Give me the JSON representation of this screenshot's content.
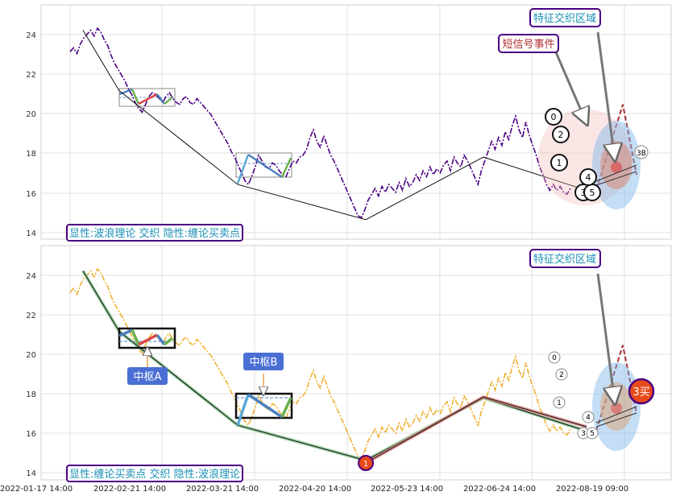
{
  "chart_data": [
    {
      "type": "line",
      "ylim": [
        13.6,
        25.6
      ],
      "yticks": [
        14,
        16,
        18,
        20,
        22,
        24
      ],
      "grid": true,
      "legend_text": "显性:波浪理论 交织 隐性:缠论买卖点",
      "annotations": [
        "特征交织区域",
        "短信号事件"
      ],
      "wave_labels": [
        "0",
        "2",
        "1",
        "3",
        "5",
        "4",
        "3B"
      ],
      "series": [
        {
          "values": [
            23.2,
            23.4,
            23.1,
            23.6,
            23.9,
            24.1,
            24.3,
            24.0,
            24.4,
            24.2,
            23.8,
            23.5,
            23.0,
            22.6,
            22.3,
            22.0,
            21.7,
            21.3,
            21.0,
            20.6,
            20.3,
            20.1,
            20.5,
            20.9,
            21.1,
            21.0,
            20.8,
            20.6,
            20.9,
            21.1,
            20.8,
            20.6,
            20.5,
            20.8,
            20.9,
            20.6,
            20.5,
            20.8,
            20.6,
            20.4,
            20.2,
            20.0,
            19.7,
            19.4,
            19.1,
            18.8,
            18.5,
            18.1,
            17.8,
            17.4,
            17.0,
            16.6,
            16.4,
            16.8,
            17.3,
            17.9,
            17.6,
            17.3,
            17.2,
            17.5,
            17.4,
            17.1,
            16.9,
            16.8,
            17.2,
            17.6,
            17.5,
            17.8,
            17.9,
            18.2,
            18.8,
            19.2,
            18.6,
            18.3,
            18.9,
            18.4,
            17.9,
            17.6,
            17.2,
            16.8,
            16.4,
            16.0,
            15.6,
            15.2,
            14.8,
            14.7,
            15.1,
            15.6,
            15.9,
            16.2,
            15.8,
            16.3,
            16.0,
            16.4,
            16.2,
            16.0,
            16.5,
            16.1,
            16.7,
            16.3,
            16.5,
            16.9,
            16.6,
            17.1,
            16.8,
            17.3,
            16.9,
            17.2,
            17.0,
            17.4,
            17.6,
            17.1,
            17.8,
            17.5,
            17.3,
            17.9,
            17.6,
            17.2,
            16.8,
            16.4,
            17.1,
            17.6,
            18.1,
            18.6,
            18.2,
            18.8,
            18.4,
            19.1,
            18.7,
            19.4,
            19.9,
            19.2,
            18.8,
            19.6,
            18.9,
            18.4,
            17.9,
            17.3,
            16.9,
            16.4,
            16.1,
            16.4,
            16.1,
            16.3,
            16.0,
            15.9,
            16.2
          ]
        },
        {
          "values": [
            24.3,
            21.2,
            16.4,
            14.6,
            17.8,
            16.1
          ]
        },
        {
          "values": [
            16.1,
            20.5,
            16.9
          ]
        }
      ]
    },
    {
      "type": "line",
      "ylim": [
        13.6,
        25.6
      ],
      "yticks": [
        14,
        16,
        18,
        20,
        22,
        24
      ],
      "grid": true,
      "x_tick_labels": [
        "2022-01-17 14:00",
        "2022-02-21 14:00",
        "2022-03-21 14:00",
        "2022-04-20 14:00",
        "2022-05-23 14:00",
        "2022-06-24 14:00",
        "2022-08-19 09:00"
      ],
      "legend_text": "显性:缠论买卖点 交织 隐性:波浪理论",
      "annotations": [
        "特征交织区域",
        "中枢A",
        "中枢B"
      ],
      "wave_labels": [
        "0",
        "2",
        "1",
        "3",
        "5",
        "4"
      ],
      "markers": [
        "1",
        "3买"
      ],
      "series": [
        {
          "values": [
            23.2,
            23.4,
            23.1,
            23.6,
            23.9,
            24.1,
            24.3,
            24.0,
            24.4,
            24.2,
            23.8,
            23.5,
            23.0,
            22.6,
            22.3,
            22.0,
            21.7,
            21.3,
            21.0,
            20.6,
            20.3,
            20.1,
            20.5,
            20.9,
            21.1,
            21.0,
            20.8,
            20.6,
            20.9,
            21.1,
            20.8,
            20.6,
            20.5,
            20.8,
            20.9,
            20.6,
            20.5,
            20.8,
            20.6,
            20.4,
            20.2,
            20.0,
            19.7,
            19.4,
            19.1,
            18.8,
            18.5,
            18.1,
            17.8,
            17.4,
            17.0,
            16.6,
            16.4,
            16.8,
            17.3,
            17.9,
            17.6,
            17.3,
            17.2,
            17.5,
            17.4,
            17.1,
            16.9,
            16.8,
            17.2,
            17.6,
            17.5,
            17.8,
            17.9,
            18.2,
            18.8,
            19.2,
            18.6,
            18.3,
            18.9,
            18.4,
            17.9,
            17.6,
            17.2,
            16.8,
            16.4,
            16.0,
            15.6,
            15.2,
            14.8,
            14.7,
            15.1,
            15.6,
            15.9,
            16.2,
            15.8,
            16.3,
            16.0,
            16.4,
            16.2,
            16.0,
            16.5,
            16.1,
            16.7,
            16.3,
            16.5,
            16.9,
            16.6,
            17.1,
            16.8,
            17.3,
            16.9,
            17.2,
            17.0,
            17.4,
            17.6,
            17.1,
            17.8,
            17.5,
            17.3,
            17.9,
            17.6,
            17.2,
            16.8,
            16.4,
            17.1,
            17.6,
            18.1,
            18.6,
            18.2,
            18.8,
            18.4,
            19.1,
            18.7,
            19.4,
            19.9,
            19.2,
            18.8,
            19.6,
            18.9,
            18.4,
            17.9,
            17.3,
            16.9,
            16.4,
            16.1,
            16.4,
            16.1,
            16.3,
            16.0,
            15.9,
            16.2
          ]
        },
        {
          "values": [
            24.3,
            21.2,
            16.4,
            14.6,
            17.8,
            16.1
          ]
        },
        {
          "values": [
            16.1,
            20.5,
            17.0
          ]
        }
      ]
    }
  ],
  "colors": {
    "price_top": "#4b0082",
    "price_bottom": "#f0b030",
    "legend_text": "#1a8fb5",
    "legend_border": "#4b0082",
    "short_signal_text": "#b23030",
    "pivot_bg": "#4a6fd4",
    "buy_marker": "#e84a1a"
  }
}
